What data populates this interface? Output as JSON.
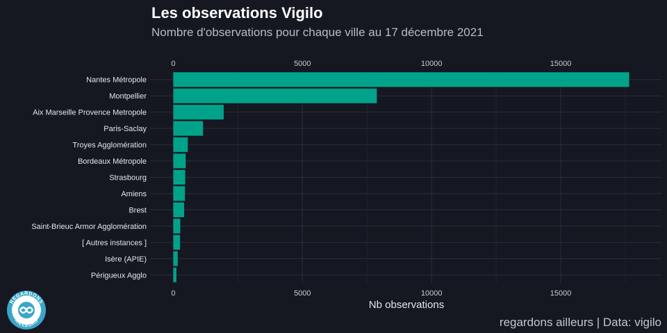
{
  "chart_data": {
    "type": "bar",
    "orientation": "horizontal",
    "title": "Les observations Vigilo",
    "subtitle": "Nombre d'observations pour chaque ville au 17 décembre 2021",
    "xlabel": "Nb observations",
    "ylabel": "",
    "caption": "regardons ailleurs | Data: vigilo",
    "categories": [
      "Nantes Métropole",
      "Montpellier",
      "Aix Marseille Provence Metropole",
      "Paris-Saclay",
      "Troyes Agglomération",
      "Bordeaux Métropole",
      "Strasbourg",
      "Amiens",
      "Brest",
      "Saint-Brieuc Armor Agglomération",
      "[ Autres instances ]",
      "Isère (APIE)",
      "Périgueux Agglo"
    ],
    "values": [
      17650,
      7880,
      1950,
      1150,
      560,
      480,
      460,
      450,
      420,
      270,
      260,
      170,
      120
    ],
    "xlim": [
      -900,
      18900
    ],
    "xticks": [
      0,
      5000,
      10000,
      15000
    ],
    "grid": true,
    "bar_color": "#00a38a"
  },
  "logo": {
    "text_top": "REGARDONS",
    "text_bottom": "AILLEURS"
  }
}
